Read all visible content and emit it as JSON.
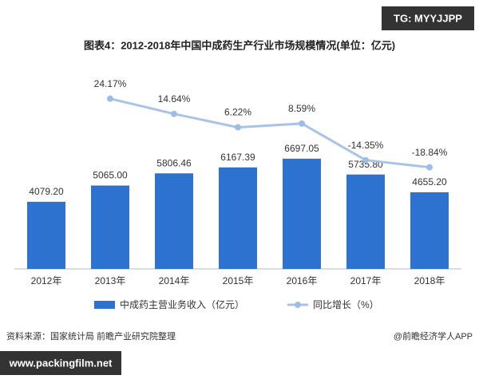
{
  "chart_data": {
    "type": "bar",
    "title": "图表4：2012-2018年中国中成药生产行业市场规模情况(单位：亿元)",
    "categories": [
      "2012年",
      "2013年",
      "2014年",
      "2015年",
      "2016年",
      "2017年",
      "2018年"
    ],
    "series": [
      {
        "name": "中成药主营业务收入（亿元）",
        "type": "bar",
        "color": "#2e72cf",
        "values": [
          4079.2,
          5065,
          5806.46,
          6167.39,
          6697.05,
          5735.8,
          4655.2
        ],
        "value_labels": [
          "4079.20",
          "5065.00",
          "5806.46",
          "6167.39",
          "6697.05",
          "5735.80",
          "4655.20"
        ]
      },
      {
        "name": "同比增长（%）",
        "type": "line",
        "axis": "y2",
        "color": "#a8c3ea",
        "values": [
          null,
          24.17,
          14.64,
          6.22,
          8.59,
          -14.35,
          -18.84
        ],
        "value_labels": [
          null,
          "24.17%",
          "14.64%",
          "6.22%",
          "8.59%",
          "-14.35%",
          "-18.84%"
        ]
      }
    ],
    "ylim": [
      0,
      8000
    ],
    "y2lim": [
      -40,
      40
    ],
    "legend": "bottom",
    "source": "资料来源：国家统计局 前瞻产业研究院整理",
    "credit": "@前瞻经济学人APP",
    "watermarks": [
      "TG: MYYJJPP",
      "www.packingfilm.net"
    ]
  }
}
